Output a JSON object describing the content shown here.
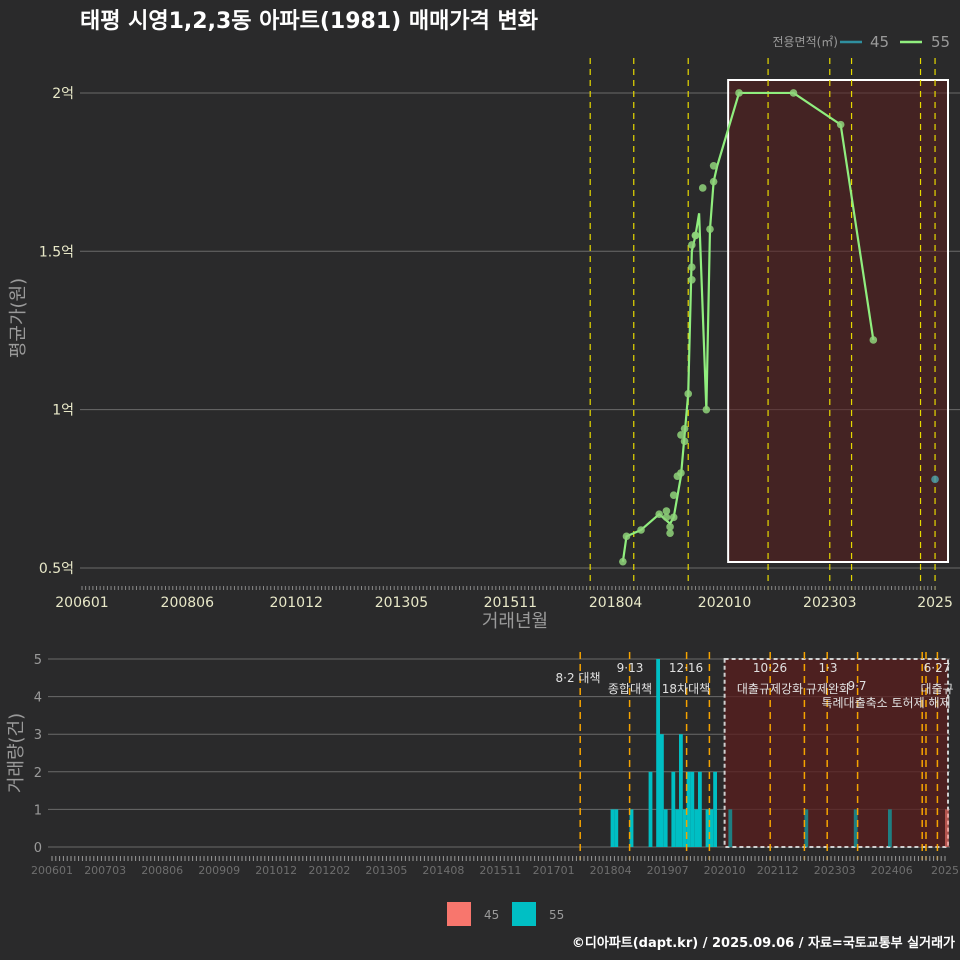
{
  "title": "태평 시영1,2,3동 아파트(1981) 매매가격 변화",
  "footer": "©디아파트(dapt.kr) / 2025.09.06 / 자료=국토교통부 실거래가",
  "colors": {
    "bg": "#2a2a2b",
    "s45": "#f8766d",
    "s55": "#00bfc4",
    "line55": "#90ee7e",
    "line45": "#2f8f9f",
    "policy": "#e6d900",
    "policy2": "#f5a300",
    "shade": "#5a1e1e"
  },
  "chart_data": [
    {
      "type": "line",
      "title": "태평 시영1,2,3동 아파트(1981) 매매가격 변화",
      "xlabel": "거래년월",
      "ylabel": "평균가(원)",
      "legend": {
        "title": "전용면적(㎡)",
        "position": "top-right",
        "entries": [
          "45",
          "55"
        ]
      },
      "x_ticks": [
        "200601",
        "200806",
        "201012",
        "201305",
        "201511",
        "201804",
        "202010",
        "202303",
        "2025"
      ],
      "x_tick_months": [
        "2006-01",
        "2008-06",
        "2010-12",
        "2013-05",
        "2015-11",
        "2018-04",
        "2020-10",
        "2023-03",
        "2025-08"
      ],
      "y_ticks": [
        {
          "v": 0.5,
          "label": "0.5억"
        },
        {
          "v": 1,
          "label": "1억"
        },
        {
          "v": 1.5,
          "label": "1.5억"
        },
        {
          "v": 2,
          "label": "2억"
        }
      ],
      "ylim": [
        0.43,
        2.15
      ],
      "xlim": [
        "2006-01",
        "2025-09"
      ],
      "highlight_range": [
        "2020-11",
        "2025-08"
      ],
      "policy_lines": [
        "2017-09",
        "2018-09",
        "2019-12",
        "2021-10",
        "2023-03",
        "2023-09",
        "2025-04",
        "2025-08"
      ],
      "series": [
        {
          "name": "55",
          "line": [
            [
              "2018-06",
              0.52
            ],
            [
              "2018-07",
              0.6
            ],
            [
              "2018-11",
              0.62
            ],
            [
              "2019-04",
              0.67
            ],
            [
              "2019-07",
              0.64
            ],
            [
              "2019-08",
              0.66
            ],
            [
              "2019-10",
              0.79
            ],
            [
              "2019-11",
              0.92
            ],
            [
              "2019-12",
              1.05
            ],
            [
              "2020-01",
              1.5
            ],
            [
              "2020-02",
              1.55
            ],
            [
              "2020-03",
              1.62
            ],
            [
              "2020-05",
              1.0
            ],
            [
              "2020-06",
              1.57
            ],
            [
              "2020-07",
              1.72
            ],
            [
              "2020-08",
              1.77
            ],
            [
              "2021-02",
              2.0
            ],
            [
              "2022-05",
              2.0
            ],
            [
              "2023-06",
              1.9
            ],
            [
              "2024-03",
              1.22
            ]
          ],
          "points": [
            [
              "2018-06",
              0.52
            ],
            [
              "2018-07",
              0.6
            ],
            [
              "2018-11",
              0.62
            ],
            [
              "2019-04",
              0.67
            ],
            [
              "2019-06",
              0.68
            ],
            [
              "2019-06",
              0.66
            ],
            [
              "2019-07",
              0.63
            ],
            [
              "2019-07",
              0.61
            ],
            [
              "2019-08",
              0.73
            ],
            [
              "2019-08",
              0.66
            ],
            [
              "2019-09",
              0.79
            ],
            [
              "2019-10",
              0.8
            ],
            [
              "2019-10",
              0.92
            ],
            [
              "2019-11",
              0.94
            ],
            [
              "2019-11",
              0.9
            ],
            [
              "2019-12",
              1.05
            ],
            [
              "2020-01",
              1.41
            ],
            [
              "2020-01",
              1.45
            ],
            [
              "2020-01",
              1.52
            ],
            [
              "2020-02",
              1.55
            ],
            [
              "2020-02",
              1.55
            ],
            [
              "2020-04",
              1.7
            ],
            [
              "2020-05",
              1.0
            ],
            [
              "2020-06",
              1.57
            ],
            [
              "2020-07",
              1.72
            ],
            [
              "2020-07",
              1.77
            ],
            [
              "2021-02",
              2.0
            ],
            [
              "2022-05",
              2.0
            ],
            [
              "2023-06",
              1.9
            ],
            [
              "2024-03",
              1.22
            ]
          ]
        },
        {
          "name": "45",
          "line": [],
          "points": [
            [
              "2025-08",
              0.78
            ]
          ]
        }
      ]
    },
    {
      "type": "bar",
      "ylabel": "거래량(건)",
      "y_ticks": [
        0,
        1,
        2,
        3,
        4,
        5
      ],
      "ylim": [
        0,
        5
      ],
      "x_ticks": [
        "200601",
        "200703",
        "200806",
        "200909",
        "201012",
        "201202",
        "201305",
        "201408",
        "201511",
        "201701",
        "201804",
        "201907",
        "202010",
        "202112",
        "202303",
        "202406",
        "2025"
      ],
      "x_tick_months": [
        "2006-01",
        "2007-03",
        "2008-06",
        "2009-09",
        "2010-12",
        "2012-02",
        "2013-05",
        "2014-08",
        "2015-11",
        "2017-01",
        "2018-04",
        "2019-07",
        "2020-10",
        "2021-12",
        "2023-03",
        "2024-06",
        "2025-08"
      ],
      "legend": {
        "position": "bottom",
        "entries": [
          "45",
          "55"
        ]
      },
      "highlight_range": [
        "2020-10",
        "2025-08"
      ],
      "policy_lines": [
        "2017-08",
        "2018-09",
        "2019-12",
        "2020-06",
        "2021-10",
        "2022-07",
        "2023-01",
        "2023-09",
        "2025-02",
        "2025-03",
        "2025-06"
      ],
      "annotations": [
        {
          "date": "8·2 대책",
          "text": ""
        },
        {
          "date": "9·13",
          "text": "종합대책"
        },
        {
          "date": "12·16",
          "text": "18차대책"
        },
        {
          "date": "10·26",
          "text": "대출규제강화"
        },
        {
          "date": "1·3",
          "text": "규제완화"
        },
        {
          "date": "9·7",
          "text": "특례대출축소 토허제 해제"
        },
        {
          "date": "6·27",
          "text": "대출규"
        }
      ],
      "series": [
        {
          "name": "55",
          "bars": [
            [
              "2018-04",
              1
            ],
            [
              "2018-05",
              1
            ],
            [
              "2018-09",
              1
            ],
            [
              "2019-02",
              2
            ],
            [
              "2019-04",
              5
            ],
            [
              "2019-05",
              3
            ],
            [
              "2019-06",
              1
            ],
            [
              "2019-08",
              2
            ],
            [
              "2019-09",
              1
            ],
            [
              "2019-10",
              3
            ],
            [
              "2019-11",
              1
            ],
            [
              "2019-12",
              2
            ],
            [
              "2020-01",
              2
            ],
            [
              "2020-02",
              1
            ],
            [
              "2020-03",
              2
            ],
            [
              "2020-05",
              1
            ],
            [
              "2020-06",
              1
            ],
            [
              "2020-07",
              2
            ],
            [
              "2020-11",
              1
            ],
            [
              "2022-07",
              1
            ],
            [
              "2023-08",
              1
            ],
            [
              "2024-05",
              1
            ]
          ]
        },
        {
          "name": "45",
          "bars": [
            [
              "2025-08",
              1
            ]
          ]
        }
      ]
    }
  ]
}
